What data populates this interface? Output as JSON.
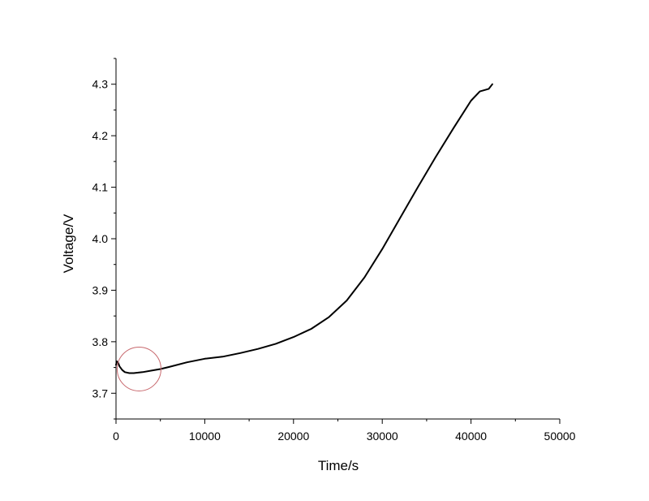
{
  "chart_data": {
    "type": "line",
    "title": "",
    "xlabel": "Time/s",
    "ylabel": "Voltage/V",
    "xlim": [
      0,
      50000
    ],
    "ylim": [
      3.65,
      4.35
    ],
    "x_ticks": [
      0,
      10000,
      20000,
      30000,
      40000,
      50000
    ],
    "x_tick_labels": [
      "0",
      "10000",
      "20000",
      "30000",
      "40000",
      "50000"
    ],
    "y_ticks": [
      3.7,
      3.8,
      3.9,
      4.0,
      4.1,
      4.2,
      4.3
    ],
    "y_tick_labels": [
      "3.7",
      "3.8",
      "3.9",
      "4.0",
      "4.1",
      "4.2",
      "4.3"
    ],
    "grid": false,
    "legend": "none",
    "series": [
      {
        "color": "#000000",
        "x": [
          0,
          100,
          250,
          400,
          700,
          1000,
          1500,
          2000,
          2500,
          3000,
          4000,
          5000,
          6000,
          8000,
          10000,
          12000,
          14000,
          16000,
          18000,
          20000,
          22000,
          24000,
          26000,
          28000,
          30000,
          32000,
          34000,
          36000,
          38000,
          40000,
          41000,
          42000,
          42400
        ],
        "y": [
          3.755,
          3.762,
          3.759,
          3.752,
          3.745,
          3.741,
          3.739,
          3.739,
          3.74,
          3.741,
          3.744,
          3.747,
          3.751,
          3.76,
          3.767,
          3.771,
          3.778,
          3.786,
          3.796,
          3.809,
          3.825,
          3.848,
          3.88,
          3.925,
          3.98,
          4.04,
          4.1,
          4.158,
          4.214,
          4.268,
          4.286,
          4.291,
          4.3
        ]
      }
    ],
    "annotations": [
      {
        "type": "circle",
        "x": 2600,
        "y": 3.747,
        "color": "#c8696e"
      }
    ]
  }
}
